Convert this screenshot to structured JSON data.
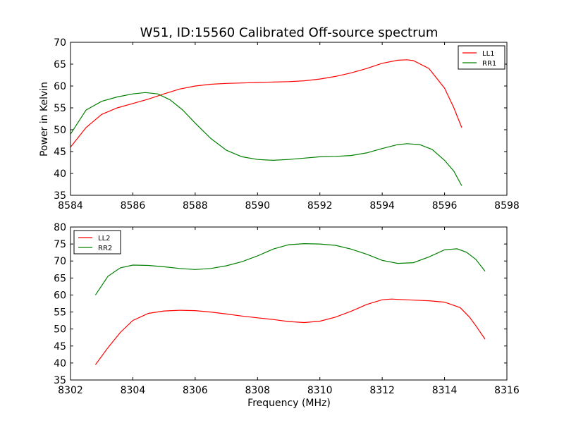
{
  "chart_data": {
    "title": "W51, ID:15560 Calibrated Off-source spectrum",
    "ylabel": "Power in Kelvin",
    "xlabel": "Frequency (MHz)",
    "charts": [
      {
        "type": "line",
        "xlim": [
          8584,
          8598
        ],
        "ylim": [
          35,
          70
        ],
        "xticks": [
          8584,
          8586,
          8588,
          8590,
          8592,
          8594,
          8596,
          8598
        ],
        "yticks": [
          35,
          40,
          45,
          50,
          55,
          60,
          65,
          70
        ],
        "legend_position": "top-right",
        "series": [
          {
            "name": "LL1",
            "color": "#ff0000",
            "x": [
              8584.0,
              8584.5,
              8585.0,
              8585.5,
              8586.0,
              8586.5,
              8587.0,
              8587.5,
              8588.0,
              8588.5,
              8589.0,
              8589.5,
              8590.0,
              8590.5,
              8591.0,
              8591.5,
              8592.0,
              8592.5,
              8593.0,
              8593.5,
              8594.0,
              8594.5,
              8594.8,
              8595.0,
              8595.5,
              8596.0,
              8596.3,
              8596.55
            ],
            "y": [
              46.0,
              50.5,
              53.5,
              55.0,
              56.0,
              57.0,
              58.2,
              59.3,
              60.0,
              60.4,
              60.6,
              60.7,
              60.8,
              60.9,
              61.0,
              61.2,
              61.6,
              62.2,
              63.0,
              64.0,
              65.2,
              65.9,
              66.0,
              65.8,
              64.0,
              59.5,
              55.0,
              50.5
            ]
          },
          {
            "name": "RR1",
            "color": "#008000",
            "x": [
              8584.0,
              8584.5,
              8585.0,
              8585.5,
              8586.0,
              8586.4,
              8586.8,
              8587.2,
              8587.6,
              8588.0,
              8588.5,
              8589.0,
              8589.5,
              8590.0,
              8590.5,
              8591.0,
              8591.5,
              8592.0,
              8592.5,
              8593.0,
              8593.5,
              8594.0,
              8594.5,
              8594.8,
              8595.2,
              8595.6,
              8596.0,
              8596.3,
              8596.55
            ],
            "y": [
              49.0,
              54.5,
              56.5,
              57.5,
              58.2,
              58.5,
              58.2,
              56.8,
              54.5,
              51.5,
              48.0,
              45.3,
              43.8,
              43.2,
              43.0,
              43.2,
              43.5,
              43.8,
              43.9,
              44.1,
              44.7,
              45.7,
              46.6,
              46.8,
              46.6,
              45.5,
              43.0,
              40.5,
              37.2
            ]
          }
        ]
      },
      {
        "type": "line",
        "xlim": [
          8302,
          8316
        ],
        "ylim": [
          35,
          80
        ],
        "xticks": [
          8302,
          8304,
          8306,
          8308,
          8310,
          8312,
          8314,
          8316
        ],
        "yticks": [
          35,
          40,
          45,
          50,
          55,
          60,
          65,
          70,
          75,
          80
        ],
        "legend_position": "top-left",
        "series": [
          {
            "name": "LL2",
            "color": "#ff0000",
            "x": [
              8302.8,
              8303.2,
              8303.6,
              8304.0,
              8304.5,
              8305.0,
              8305.5,
              8306.0,
              8306.5,
              8307.0,
              8307.5,
              8308.0,
              8308.5,
              8309.0,
              8309.5,
              8310.0,
              8310.5,
              8311.0,
              8311.5,
              8312.0,
              8312.3,
              8312.5,
              8313.0,
              8313.5,
              8314.0,
              8314.5,
              8314.8,
              8315.0,
              8315.3
            ],
            "y": [
              39.5,
              44.5,
              49.0,
              52.5,
              54.6,
              55.3,
              55.5,
              55.4,
              55.0,
              54.4,
              53.8,
              53.3,
              52.8,
              52.2,
              51.9,
              52.3,
              53.5,
              55.2,
              57.2,
              58.6,
              58.8,
              58.7,
              58.5,
              58.3,
              57.9,
              56.3,
              53.5,
              51.0,
              47.0
            ]
          },
          {
            "name": "RR2",
            "color": "#008000",
            "x": [
              8302.8,
              8303.2,
              8303.6,
              8304.0,
              8304.5,
              8305.0,
              8305.5,
              8306.0,
              8306.5,
              8307.0,
              8307.5,
              8308.0,
              8308.5,
              8309.0,
              8309.5,
              8310.0,
              8310.5,
              8311.0,
              8311.5,
              8312.0,
              8312.5,
              8313.0,
              8313.5,
              8314.0,
              8314.4,
              8314.7,
              8315.0,
              8315.3
            ],
            "y": [
              60.0,
              65.5,
              68.0,
              68.8,
              68.7,
              68.3,
              67.8,
              67.5,
              67.8,
              68.6,
              69.8,
              71.5,
              73.5,
              74.8,
              75.1,
              75.0,
              74.6,
              73.5,
              72.0,
              70.2,
              69.3,
              69.5,
              71.2,
              73.3,
              73.6,
              72.6,
              70.5,
              67.0
            ]
          }
        ]
      }
    ]
  }
}
